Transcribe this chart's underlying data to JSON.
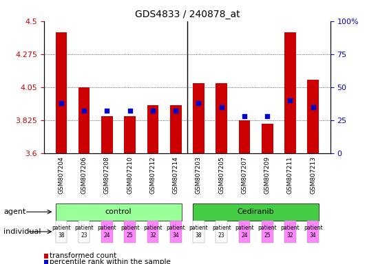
{
  "title": "GDS4833 / 240878_at",
  "samples": [
    "GSM807204",
    "GSM807206",
    "GSM807208",
    "GSM807210",
    "GSM807212",
    "GSM807214",
    "GSM807203",
    "GSM807205",
    "GSM807207",
    "GSM807209",
    "GSM807211",
    "GSM807213"
  ],
  "bar_values": [
    4.425,
    4.05,
    3.85,
    3.85,
    3.925,
    3.925,
    4.075,
    4.075,
    3.825,
    3.8,
    4.425,
    4.1
  ],
  "percentile_values": [
    38,
    32,
    32,
    32,
    32,
    32,
    38,
    35,
    28,
    28,
    40,
    35
  ],
  "ylim_left": [
    3.6,
    4.5
  ],
  "ylim_right": [
    0,
    100
  ],
  "yticks_left": [
    3.6,
    3.825,
    4.05,
    4.275,
    4.5
  ],
  "yticks_right": [
    0,
    25,
    50,
    75,
    100
  ],
  "ytick_labels_left": [
    "3.6",
    "3.825",
    "4.05",
    "4.275",
    "4.5"
  ],
  "ytick_labels_right": [
    "0",
    "25",
    "50",
    "75",
    "100%"
  ],
  "bar_color": "#cc0000",
  "percentile_color": "#0000cc",
  "control_color": "#99ff99",
  "cediranib_color": "#44cc44",
  "individual_colors": [
    "#ffffff",
    "#ffffff",
    "#ff88ff",
    "#ff88ff",
    "#ff88ff",
    "#ff88ff"
  ],
  "control_label": "control",
  "cediranib_label": "Cediranib",
  "agent_label": "agent",
  "individual_label": "individual",
  "patients_control": [
    "patient\n38",
    "patient\n23",
    "patient\n24",
    "patient\n25",
    "patient\n32",
    "patient\n34"
  ],
  "patients_cediranib": [
    "patient\n38",
    "patient\n23",
    "patient\n24",
    "patient\n25",
    "patient\n32",
    "patient\n34"
  ],
  "legend_red": "transformed count",
  "legend_blue": "percentile rank within the sample",
  "tick_color_left": "#cc0000",
  "tick_color_right": "#0000cc",
  "bar_width": 0.5,
  "xlim": [
    -0.75,
    11.75
  ]
}
